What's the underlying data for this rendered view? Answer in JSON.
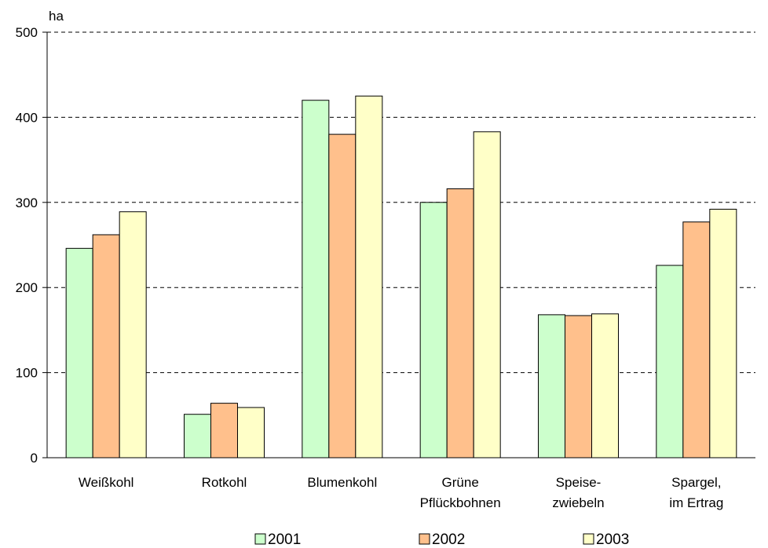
{
  "chart_data": {
    "type": "bar",
    "ylabel": "ha",
    "ylim": [
      0,
      500
    ],
    "yticks": [
      0,
      100,
      200,
      300,
      400,
      500
    ],
    "grid": "horizontal-dashed",
    "legend_position": "bottom",
    "categories": [
      [
        "Weißkohl"
      ],
      [
        "Rotkohl"
      ],
      [
        "Blumenkohl"
      ],
      [
        "Grüne",
        "Pflückbohnen"
      ],
      [
        "Speise-",
        "zwiebeln"
      ],
      [
        "Spargel,",
        "im Ertrag"
      ]
    ],
    "series": [
      {
        "name": "2001",
        "color": "#ccffcc",
        "values": [
          246,
          51,
          420,
          300,
          168,
          226
        ]
      },
      {
        "name": "2002",
        "color": "#ffc08c",
        "values": [
          262,
          64,
          380,
          316,
          167,
          277
        ]
      },
      {
        "name": "2003",
        "color": "#ffffc8",
        "values": [
          289,
          59,
          425,
          383,
          169,
          292
        ]
      }
    ]
  }
}
